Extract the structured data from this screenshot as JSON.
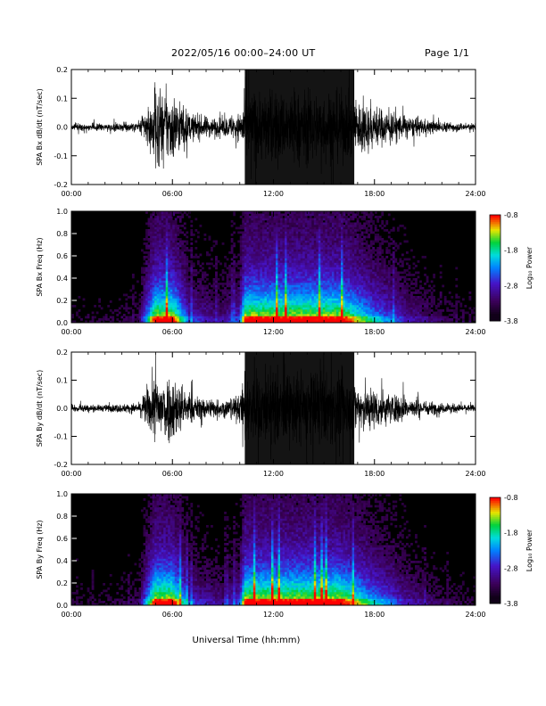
{
  "header": {
    "title": "2022/05/16  00:00–24:00 UT",
    "page": "Page 1/1"
  },
  "xlabel": "Universal Time (hh:mm)",
  "chart_data": [
    {
      "type": "line",
      "panel": "SPA Bx dB/dt",
      "ylabel": "SPA Bx dB/dt (nT/sec)",
      "xlim": [
        "00:00",
        "24:00"
      ],
      "ylim": [
        -0.2,
        0.2
      ],
      "xticks": [
        "00:00",
        "06:00",
        "12:00",
        "18:00",
        "24:00"
      ],
      "yticks": [
        "0.2",
        "0.1",
        "0.0",
        "-0.1",
        "-0.2"
      ],
      "x_hours": [
        0,
        2,
        4,
        5,
        6,
        7,
        8,
        9,
        10,
        10.3,
        12,
        14,
        16,
        18,
        20,
        22,
        24
      ],
      "amplitude": [
        0.02,
        0.02,
        0.03,
        0.2,
        0.2,
        0.08,
        0.06,
        0.05,
        0.08,
        0.2,
        0.2,
        0.2,
        0.2,
        0.12,
        0.06,
        0.03,
        0.02
      ]
    },
    {
      "type": "heatmap",
      "panel": "SPA Bx Freq",
      "ylabel": "SPA Bx Freq (Hz)",
      "xlim": [
        "00:00",
        "24:00"
      ],
      "ylim": [
        0.0,
        1.0
      ],
      "xticks": [
        "00:00",
        "06:00",
        "12:00",
        "18:00",
        "24:00"
      ],
      "yticks": [
        "1.0",
        "0.8",
        "0.6",
        "0.4",
        "0.2",
        "0.0"
      ],
      "colorbar": {
        "label": "Log₁₀ Power",
        "ticks": [
          "-0.8",
          "-1.8",
          "-2.8",
          "-3.8"
        ],
        "range": [
          -3.8,
          -0.8
        ]
      }
    },
    {
      "type": "line",
      "panel": "SPA By dB/dt",
      "ylabel": "SPA By dB/dt (nT/sec)",
      "xlim": [
        "00:00",
        "24:00"
      ],
      "ylim": [
        -0.2,
        0.2
      ],
      "xticks": [
        "00:00",
        "06:00",
        "12:00",
        "18:00",
        "24:00"
      ],
      "yticks": [
        "0.2",
        "0.1",
        "0.0",
        "-0.1",
        "-0.2"
      ],
      "x_hours": [
        0,
        2,
        4,
        5,
        6,
        7,
        8,
        9,
        10,
        10.3,
        12,
        14,
        16,
        18,
        20,
        22,
        24
      ],
      "amplitude": [
        0.02,
        0.02,
        0.03,
        0.2,
        0.2,
        0.08,
        0.06,
        0.05,
        0.08,
        0.2,
        0.2,
        0.2,
        0.2,
        0.12,
        0.06,
        0.03,
        0.02
      ]
    },
    {
      "type": "heatmap",
      "panel": "SPA By Freq",
      "ylabel": "SPA By Freq (Hz)",
      "xlim": [
        "00:00",
        "24:00"
      ],
      "ylim": [
        0.0,
        1.0
      ],
      "xticks": [
        "00:00",
        "06:00",
        "12:00",
        "18:00",
        "24:00"
      ],
      "yticks": [
        "1.0",
        "0.8",
        "0.6",
        "0.4",
        "0.2",
        "0.0"
      ],
      "colorbar": {
        "label": "Log₁₀ Power",
        "ticks": [
          "-0.8",
          "-1.8",
          "-2.8",
          "-3.8"
        ],
        "range": [
          -3.8,
          -0.8
        ]
      }
    }
  ]
}
